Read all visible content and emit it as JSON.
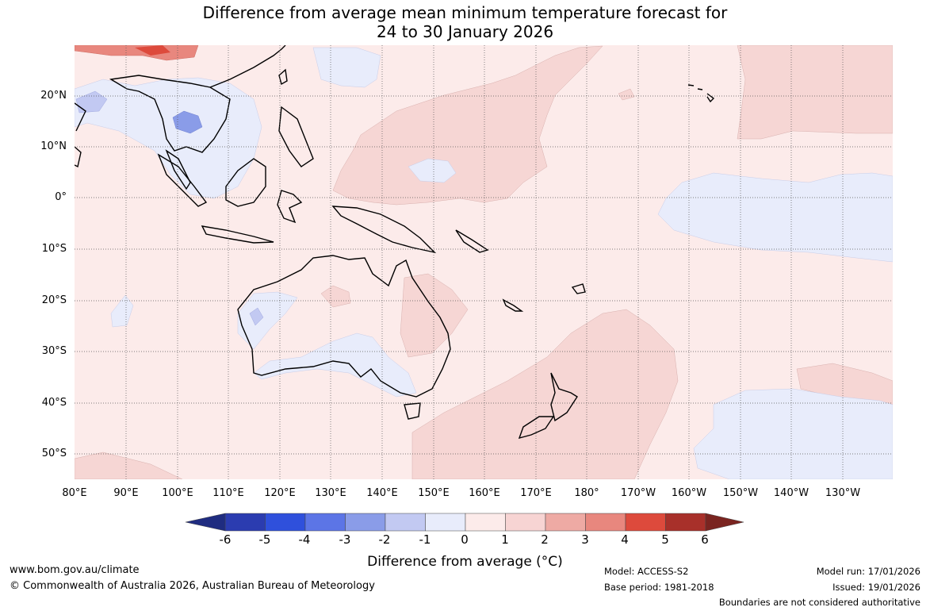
{
  "title": {
    "line1": "Difference from average mean minimum temperature forecast for",
    "line2": "24 to 30 January 2026"
  },
  "map": {
    "lat_labels": [
      "20°N",
      "10°N",
      "0°",
      "10°S",
      "20°S",
      "30°S",
      "40°S",
      "50°S"
    ],
    "lon_labels": [
      "80°E",
      "90°E",
      "100°E",
      "110°E",
      "120°E",
      "130°E",
      "140°E",
      "150°E",
      "160°E",
      "170°E",
      "180°",
      "170°W",
      "160°W",
      "150°W",
      "140°W",
      "130°W"
    ]
  },
  "colorbar": {
    "ticks": [
      "-6",
      "-5",
      "-4",
      "-3",
      "-2",
      "-1",
      "0",
      "1",
      "2",
      "3",
      "4",
      "5",
      "6"
    ],
    "colors": [
      "#2b3cb0",
      "#2f50dc",
      "#5c75e6",
      "#8a9ce8",
      "#c2c9f2",
      "#e8ecfb",
      "#fcebea",
      "#f7d4d3",
      "#eeaaa4",
      "#e8877e",
      "#dd4a3c",
      "#a8302a"
    ],
    "low_arrow_color": "#1f2c80",
    "high_arrow_color": "#7a2420",
    "title": "Difference from average (°C)"
  },
  "footer": {
    "website": "www.bom.gov.au/climate",
    "copyright": "© Commonwealth of Australia 2026, Australian Bureau of Meteorology",
    "model": "Model: ACCESS-S2",
    "base_period": "Base period: 1981-2018",
    "model_run": "Model run: 17/01/2026",
    "issued": "Issued: 19/01/2026",
    "boundaries": "Boundaries are not considered authoritative"
  }
}
